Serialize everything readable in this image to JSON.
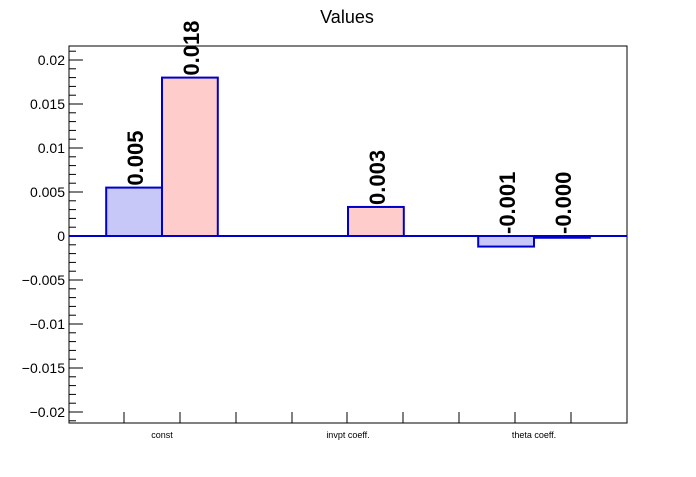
{
  "chart_data": {
    "type": "bar",
    "title": "Values",
    "xlabel": "",
    "ylabel": "",
    "categories": [
      "const",
      "invpt coeff.",
      "theta coeff."
    ],
    "ylim": [
      -0.0215,
      0.0215
    ],
    "y_ticks": [
      {
        "value": 0.02,
        "label": "0.02"
      },
      {
        "value": 0.015,
        "label": "0.015"
      },
      {
        "value": 0.01,
        "label": "0.01"
      },
      {
        "value": 0.005,
        "label": "0.005"
      },
      {
        "value": 0,
        "label": "0"
      },
      {
        "value": -0.005,
        "label": "−0.005"
      },
      {
        "value": -0.01,
        "label": "−0.01"
      },
      {
        "value": -0.015,
        "label": "−0.015"
      },
      {
        "value": -0.02,
        "label": "−0.02"
      }
    ],
    "grid": false,
    "legend": "none",
    "series": [
      {
        "color": "#c8c8f8",
        "edge_color": "#0000cc",
        "values": [
          0.0055,
          null,
          -0.0012
        ],
        "labels": [
          "0.005",
          null,
          "-0.001"
        ]
      },
      {
        "color": "#ffcccc",
        "edge_color": "#0000cc",
        "values": [
          0.018,
          0.0033,
          -0.0002
        ],
        "labels": [
          "0.018",
          "0.003",
          "-0.000"
        ]
      }
    ]
  }
}
